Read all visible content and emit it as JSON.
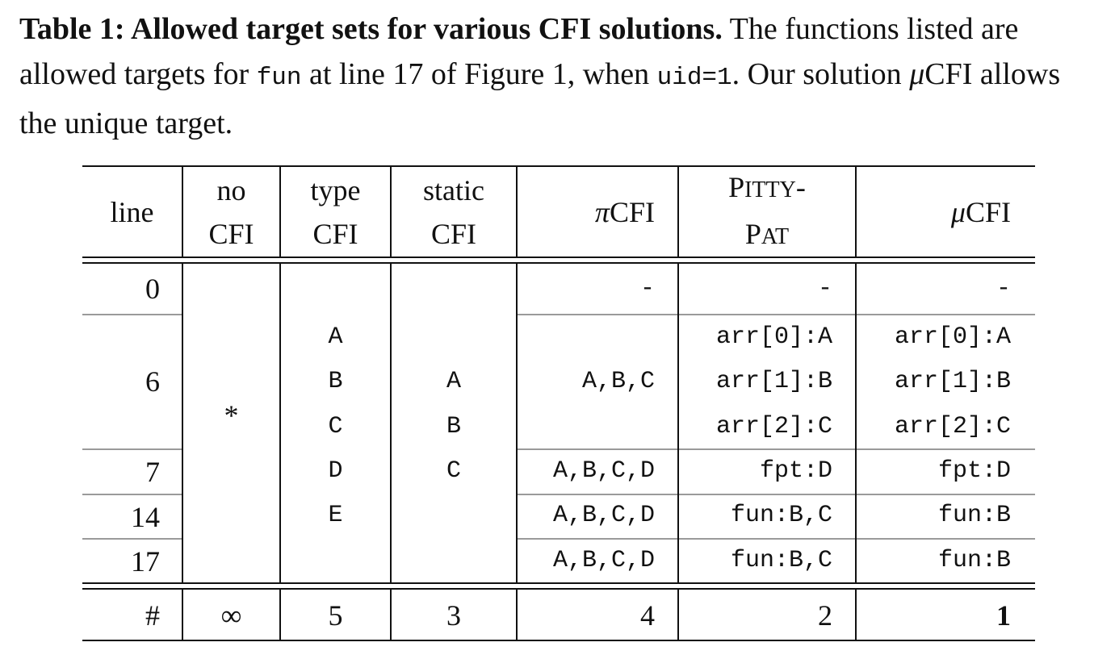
{
  "caption": {
    "label": "Table 1: Allowed target sets for various CFI solutions.",
    "text_1": " The functions listed are allowed targets for ",
    "code_fun": "fun",
    "text_2": " at line 17 of Figure 1, when ",
    "code_uid": "uid=1",
    "text_3": ". Our solution ",
    "mu": "μ",
    "text_4": "CFI allows the unique target."
  },
  "header": {
    "line": "line",
    "no_cfi": [
      "no",
      "CFI"
    ],
    "type_cfi": [
      "type",
      "CFI"
    ],
    "static_cfi": [
      "static",
      "CFI"
    ],
    "pi_cfi_sym": "π",
    "pi_cfi_rest": "CFI",
    "pittypat_1": {
      "P": "P",
      "rest": "ITTY",
      "dash": "-"
    },
    "pittypat_2": {
      "P": "P",
      "rest": "AT"
    },
    "mu_cfi_sym": "μ",
    "mu_cfi_rest": "CFI"
  },
  "rows": [
    {
      "line": "0",
      "pi": "-",
      "pitty": [
        "-"
      ],
      "mu": [
        "-"
      ]
    },
    {
      "line": "6",
      "pi": "A,B,C",
      "pitty": [
        "arr[0]:A",
        "arr[1]:B",
        "arr[2]:C"
      ],
      "mu": [
        "arr[0]:A",
        "arr[1]:B",
        "arr[2]:C"
      ]
    },
    {
      "line": "7",
      "pi": "A,B,C,D",
      "pitty": [
        "fpt:D"
      ],
      "mu": [
        "fpt:D"
      ]
    },
    {
      "line": "14",
      "pi": "A,B,C,D",
      "pitty": [
        "fun:B,C"
      ],
      "mu": [
        "fun:B"
      ]
    },
    {
      "line": "17",
      "pi": "A,B,C,D",
      "pitty": [
        "fun:B,C"
      ],
      "mu": [
        "fun:B"
      ]
    }
  ],
  "no_cfi_value": "*",
  "type_cfi_values": [
    "A",
    "B",
    "C",
    "D",
    "E"
  ],
  "static_cfi_values": [
    "A",
    "B",
    "C"
  ],
  "footer": {
    "label": "#",
    "no_cfi": "∞",
    "type_cfi": "5",
    "static_cfi": "3",
    "pi_cfi": "4",
    "pittypat": "2",
    "mu_cfi": "1"
  }
}
